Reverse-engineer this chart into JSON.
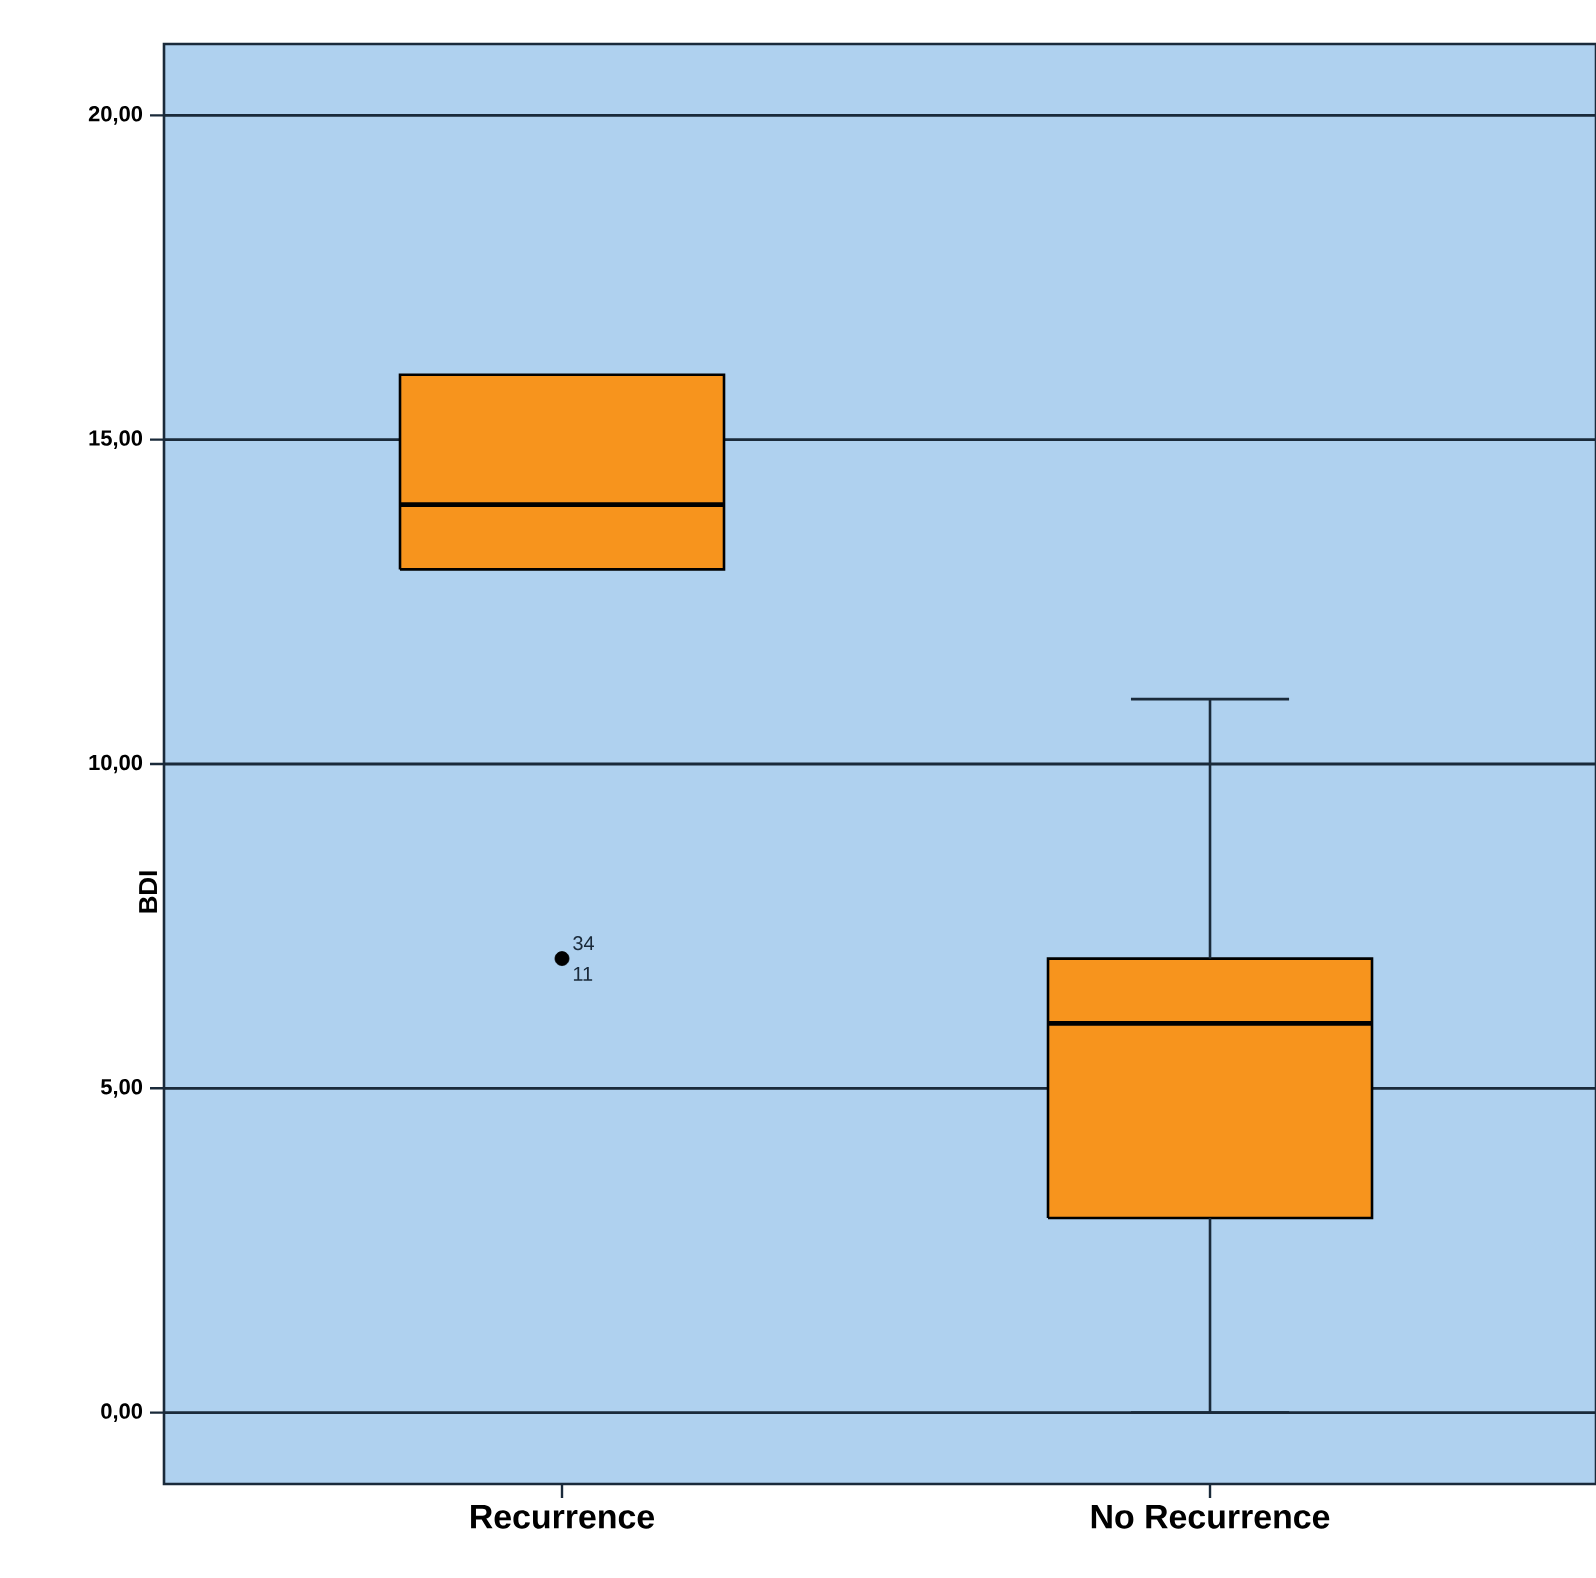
{
  "chart_data": {
    "type": "box",
    "ylabel": "BDI",
    "categories": [
      "Recurrence",
      "No Recurrence"
    ],
    "boxes": [
      {
        "low": 13,
        "q1": 13,
        "median": 14,
        "q3": 16,
        "high": 16,
        "outliers": [
          7
        ]
      },
      {
        "low": 0,
        "q1": 3,
        "median": 6,
        "q3": 7,
        "high": 11
      }
    ],
    "color": "#f7941d",
    "ylim": [
      -1.1,
      21.1
    ],
    "yticks": [
      {
        "value": 0,
        "label": "0,00"
      },
      {
        "value": 5,
        "label": "5,00"
      },
      {
        "value": 10,
        "label": "10,00"
      },
      {
        "value": 15,
        "label": "15,00"
      },
      {
        "value": 20,
        "label": "20,00"
      }
    ],
    "grid": "y",
    "annotations": [
      "34",
      "11"
    ]
  }
}
